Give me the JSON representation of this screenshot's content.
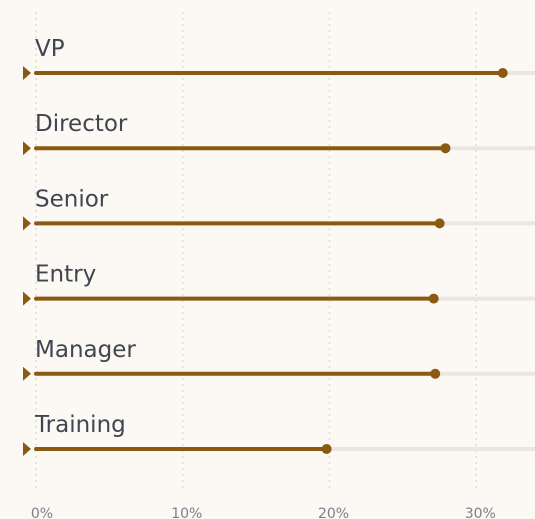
{
  "chart_data": {
    "type": "lollipop",
    "categories": [
      "VP",
      "Director",
      "Senior",
      "Entry",
      "Manager",
      "Training"
    ],
    "values": [
      31.8,
      27.9,
      27.5,
      27.1,
      27.2,
      19.8
    ],
    "color": "#8b5a12",
    "xlim": [
      0,
      34
    ],
    "xticks": [
      {
        "value": 0,
        "label": "0%"
      },
      {
        "value": 10,
        "label": "10%"
      },
      {
        "value": 20,
        "label": "20%"
      },
      {
        "value": 30,
        "label": "30%"
      }
    ],
    "grid": true
  }
}
